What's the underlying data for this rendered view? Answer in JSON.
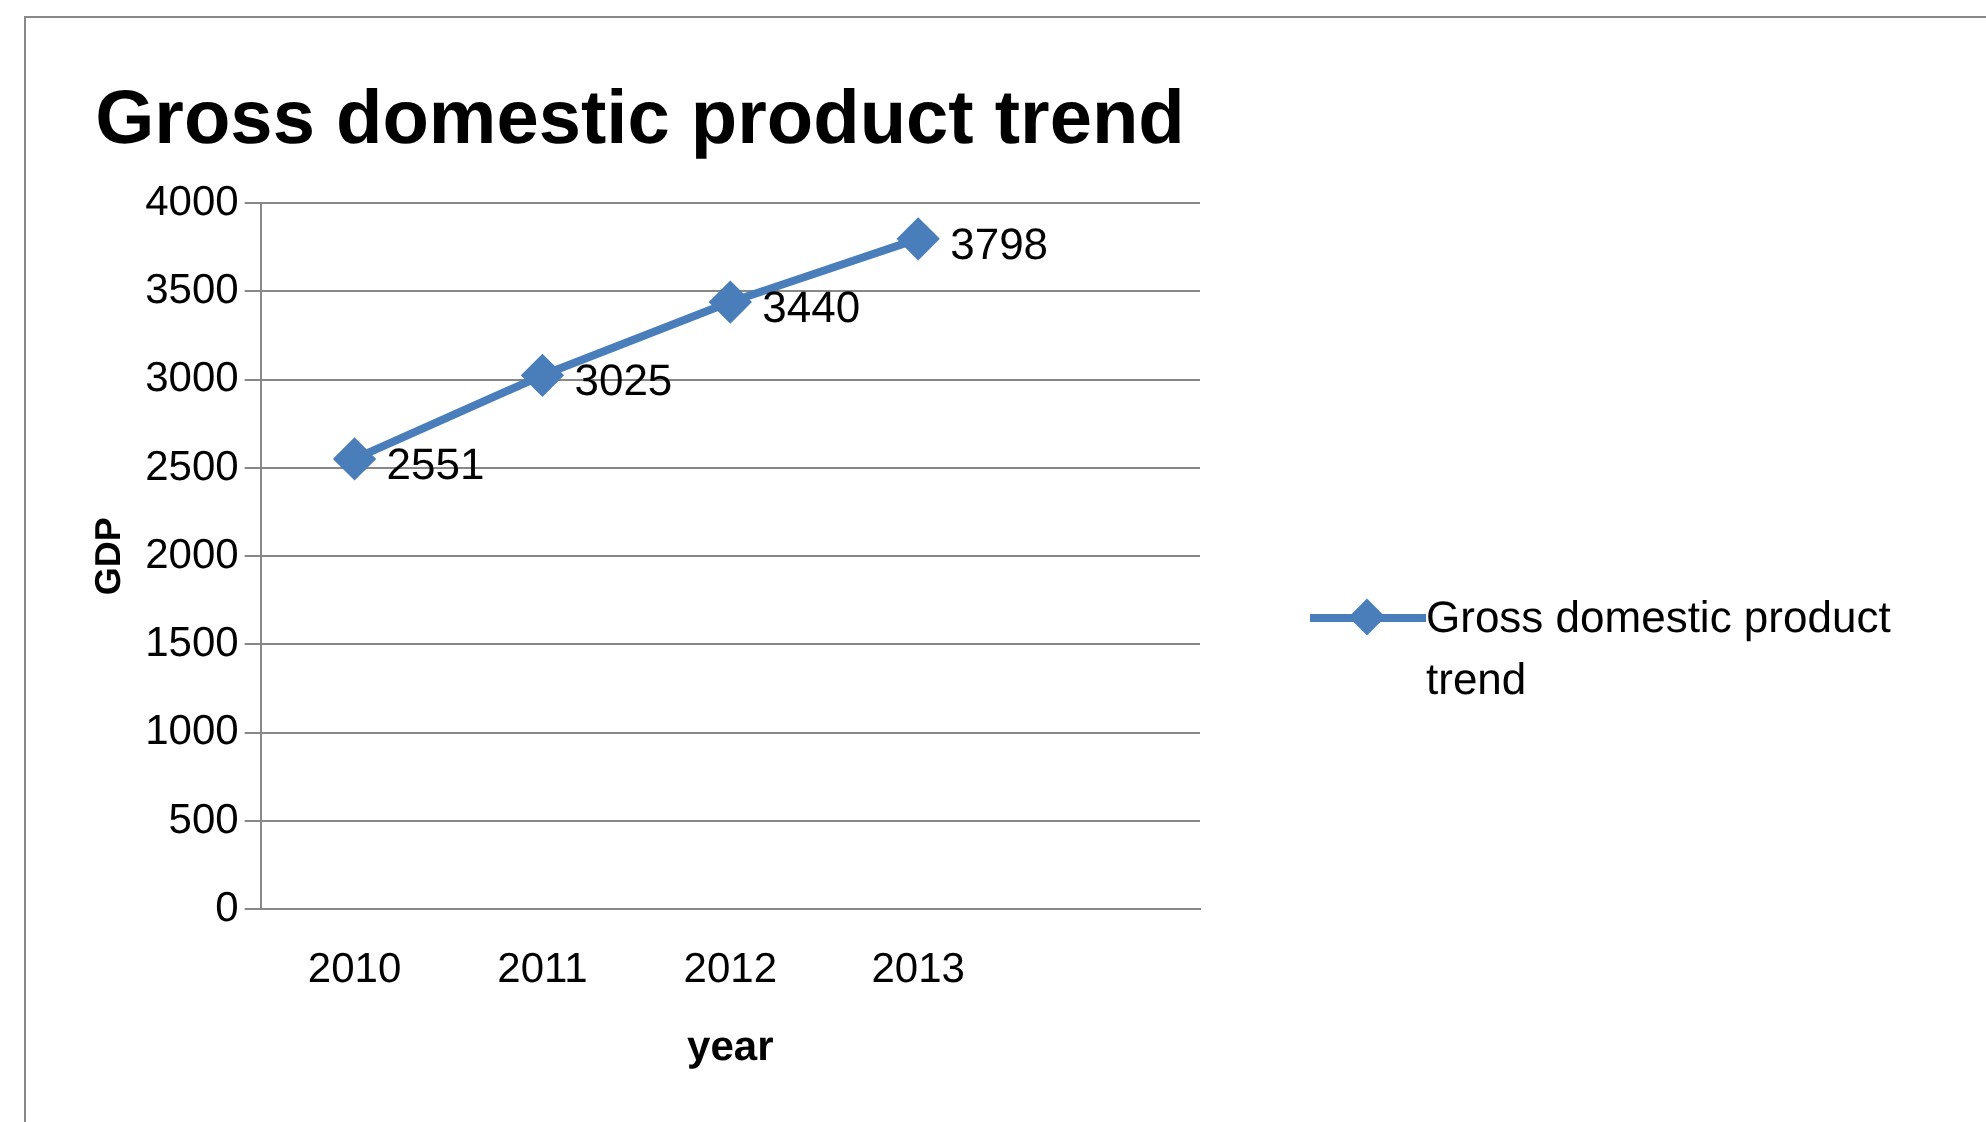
{
  "chart_data": {
    "type": "line",
    "title": "Gross domestic product trend",
    "xlabel": "year",
    "ylabel": "GDP",
    "categories": [
      "2010",
      "2011",
      "2012",
      "2013",
      null
    ],
    "series": [
      {
        "name": "Gross domestic product trend",
        "color": "#4a7ebb",
        "values": [
          2551,
          3025,
          3440,
          3798,
          null
        ]
      }
    ],
    "ylim": [
      0,
      4000
    ],
    "yticks": [
      0,
      500,
      1000,
      1500,
      2000,
      2500,
      3000,
      3500,
      4000
    ],
    "grid": "y",
    "legend": "right",
    "marker": "diamond",
    "data_labels": true
  }
}
